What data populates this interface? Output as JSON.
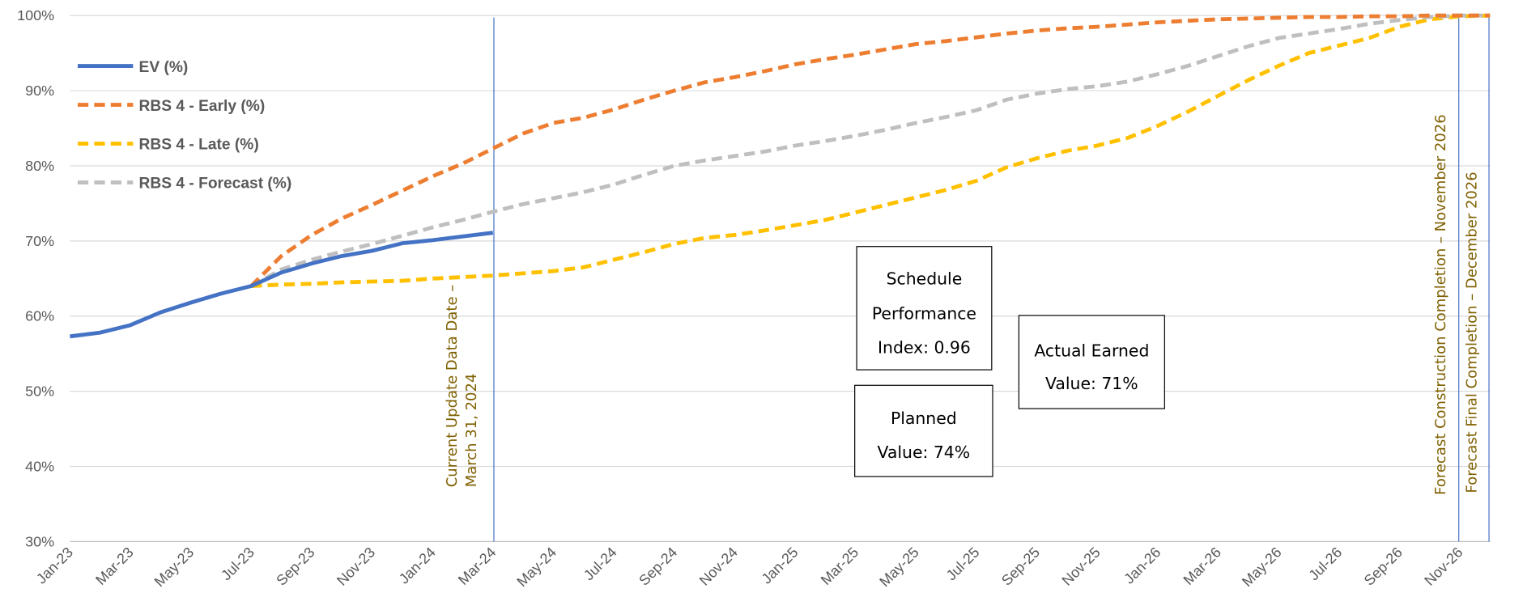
{
  "chart_data": {
    "type": "line",
    "categories": [
      "Jan-23",
      null,
      "Mar-23",
      null,
      "May-23",
      null,
      "Jul-23",
      null,
      "Sep-23",
      null,
      "Nov-23",
      null,
      "Jan-24",
      null,
      "Mar-24",
      null,
      "May-24",
      null,
      "Jul-24",
      null,
      "Sep-24",
      null,
      "Nov-24",
      null,
      "Jan-25",
      null,
      "Mar-25",
      null,
      "May-25",
      null,
      "Jul-25",
      null,
      "Sep-25",
      null,
      "Nov-25",
      null,
      "Jan-26",
      null,
      "Mar-26",
      null,
      "May-26",
      null,
      "Jul-26",
      null,
      "Sep-26",
      null,
      "Nov-26",
      null
    ],
    "series": [
      {
        "name": "EV (%)",
        "color": "#4472c4",
        "dashed": false,
        "values": [
          57.3,
          57.8,
          58.8,
          60.5,
          61.8,
          63.0,
          64.0,
          65.8,
          67.0,
          68.0,
          68.7,
          69.7,
          70.1,
          70.6,
          71.1,
          null,
          null,
          null,
          null,
          null,
          null,
          null,
          null,
          null,
          null,
          null,
          null,
          null,
          null,
          null,
          null,
          null,
          null,
          null,
          null,
          null,
          null,
          null,
          null,
          null,
          null,
          null,
          null,
          null,
          null,
          null,
          null,
          null
        ]
      },
      {
        "name": "RBS 4 - Early (%)",
        "color": "#ed7d31",
        "dashed": true,
        "values": [
          null,
          null,
          null,
          null,
          null,
          null,
          64.0,
          68.0,
          70.8,
          73.0,
          74.8,
          76.7,
          78.6,
          80.3,
          82.3,
          84.3,
          85.7,
          86.4,
          87.5,
          88.8,
          90.0,
          91.1,
          91.8,
          92.6,
          93.5,
          94.2,
          94.8,
          95.5,
          96.2,
          96.6,
          97.1,
          97.6,
          98.0,
          98.3,
          98.5,
          98.8,
          99.1,
          99.3,
          99.5,
          99.6,
          99.7,
          99.8,
          99.8,
          99.9,
          99.9,
          100,
          100,
          100
        ]
      },
      {
        "name": "RBS 4 - Late (%)",
        "color": "#ffc000",
        "dashed": true,
        "values": [
          null,
          null,
          null,
          null,
          null,
          null,
          64.0,
          64.2,
          64.3,
          64.5,
          64.6,
          64.7,
          65.0,
          65.2,
          65.4,
          65.7,
          66.0,
          66.5,
          67.5,
          68.5,
          69.6,
          70.4,
          70.8,
          71.4,
          72.1,
          72.8,
          73.8,
          74.8,
          75.8,
          76.8,
          78.0,
          79.8,
          81.0,
          82.0,
          82.7,
          83.7,
          85.3,
          87.2,
          89.3,
          91.4,
          93.3,
          95.0,
          96.0,
          97.0,
          98.5,
          99.5,
          99.9,
          100
        ]
      },
      {
        "name": "RBS 4 - Forecast (%)",
        "color": "#bfbfbf",
        "dashed": true,
        "values": [
          null,
          null,
          null,
          null,
          null,
          null,
          64.0,
          66.2,
          67.5,
          68.6,
          69.6,
          70.7,
          71.8,
          72.8,
          73.9,
          74.9,
          75.7,
          76.5,
          77.5,
          78.8,
          80.0,
          80.7,
          81.3,
          81.9,
          82.7,
          83.3,
          84.0,
          84.8,
          85.7,
          86.5,
          87.4,
          88.8,
          89.6,
          90.2,
          90.6,
          91.2,
          92.2,
          93.3,
          94.6,
          95.9,
          97.0,
          97.6,
          98.2,
          98.9,
          99.4,
          99.8,
          100,
          100
        ]
      }
    ],
    "ylim": [
      30,
      100
    ],
    "yticks": [
      {
        "value": 30,
        "label": "30%"
      },
      {
        "value": 40,
        "label": "40%"
      },
      {
        "value": 50,
        "label": "50%"
      },
      {
        "value": 60,
        "label": "60%"
      },
      {
        "value": 70,
        "label": "70%"
      },
      {
        "value": 80,
        "label": "80%"
      },
      {
        "value": 90,
        "label": "90%"
      },
      {
        "value": 100,
        "label": "100%"
      }
    ],
    "grid": true,
    "legend": "top-left",
    "annotations": [
      {
        "lines": [
          "Current Update Data Date –",
          "March 31, 2024"
        ]
      },
      {
        "lines": [
          "Forecast Construction Completion – November 2026"
        ]
      },
      {
        "lines": [
          "Forecast Final Completion – December 2026"
        ]
      }
    ],
    "boxes": [
      {
        "lines": [
          "Schedule",
          "Performance",
          "Index: 0.96"
        ]
      },
      {
        "lines": [
          "Planned",
          "Value: 74%"
        ]
      },
      {
        "lines": [
          "Actual Earned",
          "Value: 71%"
        ]
      }
    ]
  }
}
